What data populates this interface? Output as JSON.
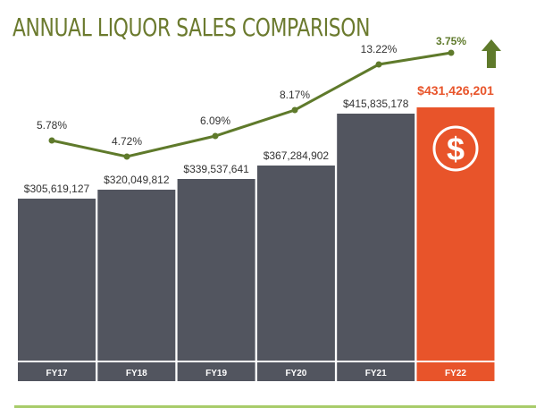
{
  "chart_data": {
    "type": "bar",
    "title": "ANNUAL LIQUOR SALES COMPARISON",
    "categories": [
      "FY17",
      "FY18",
      "FY19",
      "FY20",
      "FY21",
      "FY22"
    ],
    "series": [
      {
        "type": "bar",
        "values": [
          305619127,
          320049812,
          339537641,
          367284902,
          415835178,
          431426201
        ],
        "labels": [
          "$305,619,127",
          "$320,049,812",
          "$339,537,641",
          "$367,284,902",
          "$415,835,178",
          "$431,426,201"
        ]
      },
      {
        "type": "line",
        "values": [
          5.78,
          4.72,
          6.09,
          8.17,
          13.22,
          3.75
        ],
        "labels": [
          "5.78%",
          "4.72%",
          "6.09%",
          "8.17%",
          "13.22%",
          "3.75%"
        ]
      }
    ],
    "highlight": {
      "category": "FY22",
      "icon": "dollar-circle-icon",
      "arrow": "up-arrow-icon"
    },
    "colors": {
      "bar": "#52555f",
      "highlight": "#e8542a",
      "line": "#5f7a2b",
      "title": "#6b7a2e",
      "rule": "#a8cc6a"
    }
  }
}
